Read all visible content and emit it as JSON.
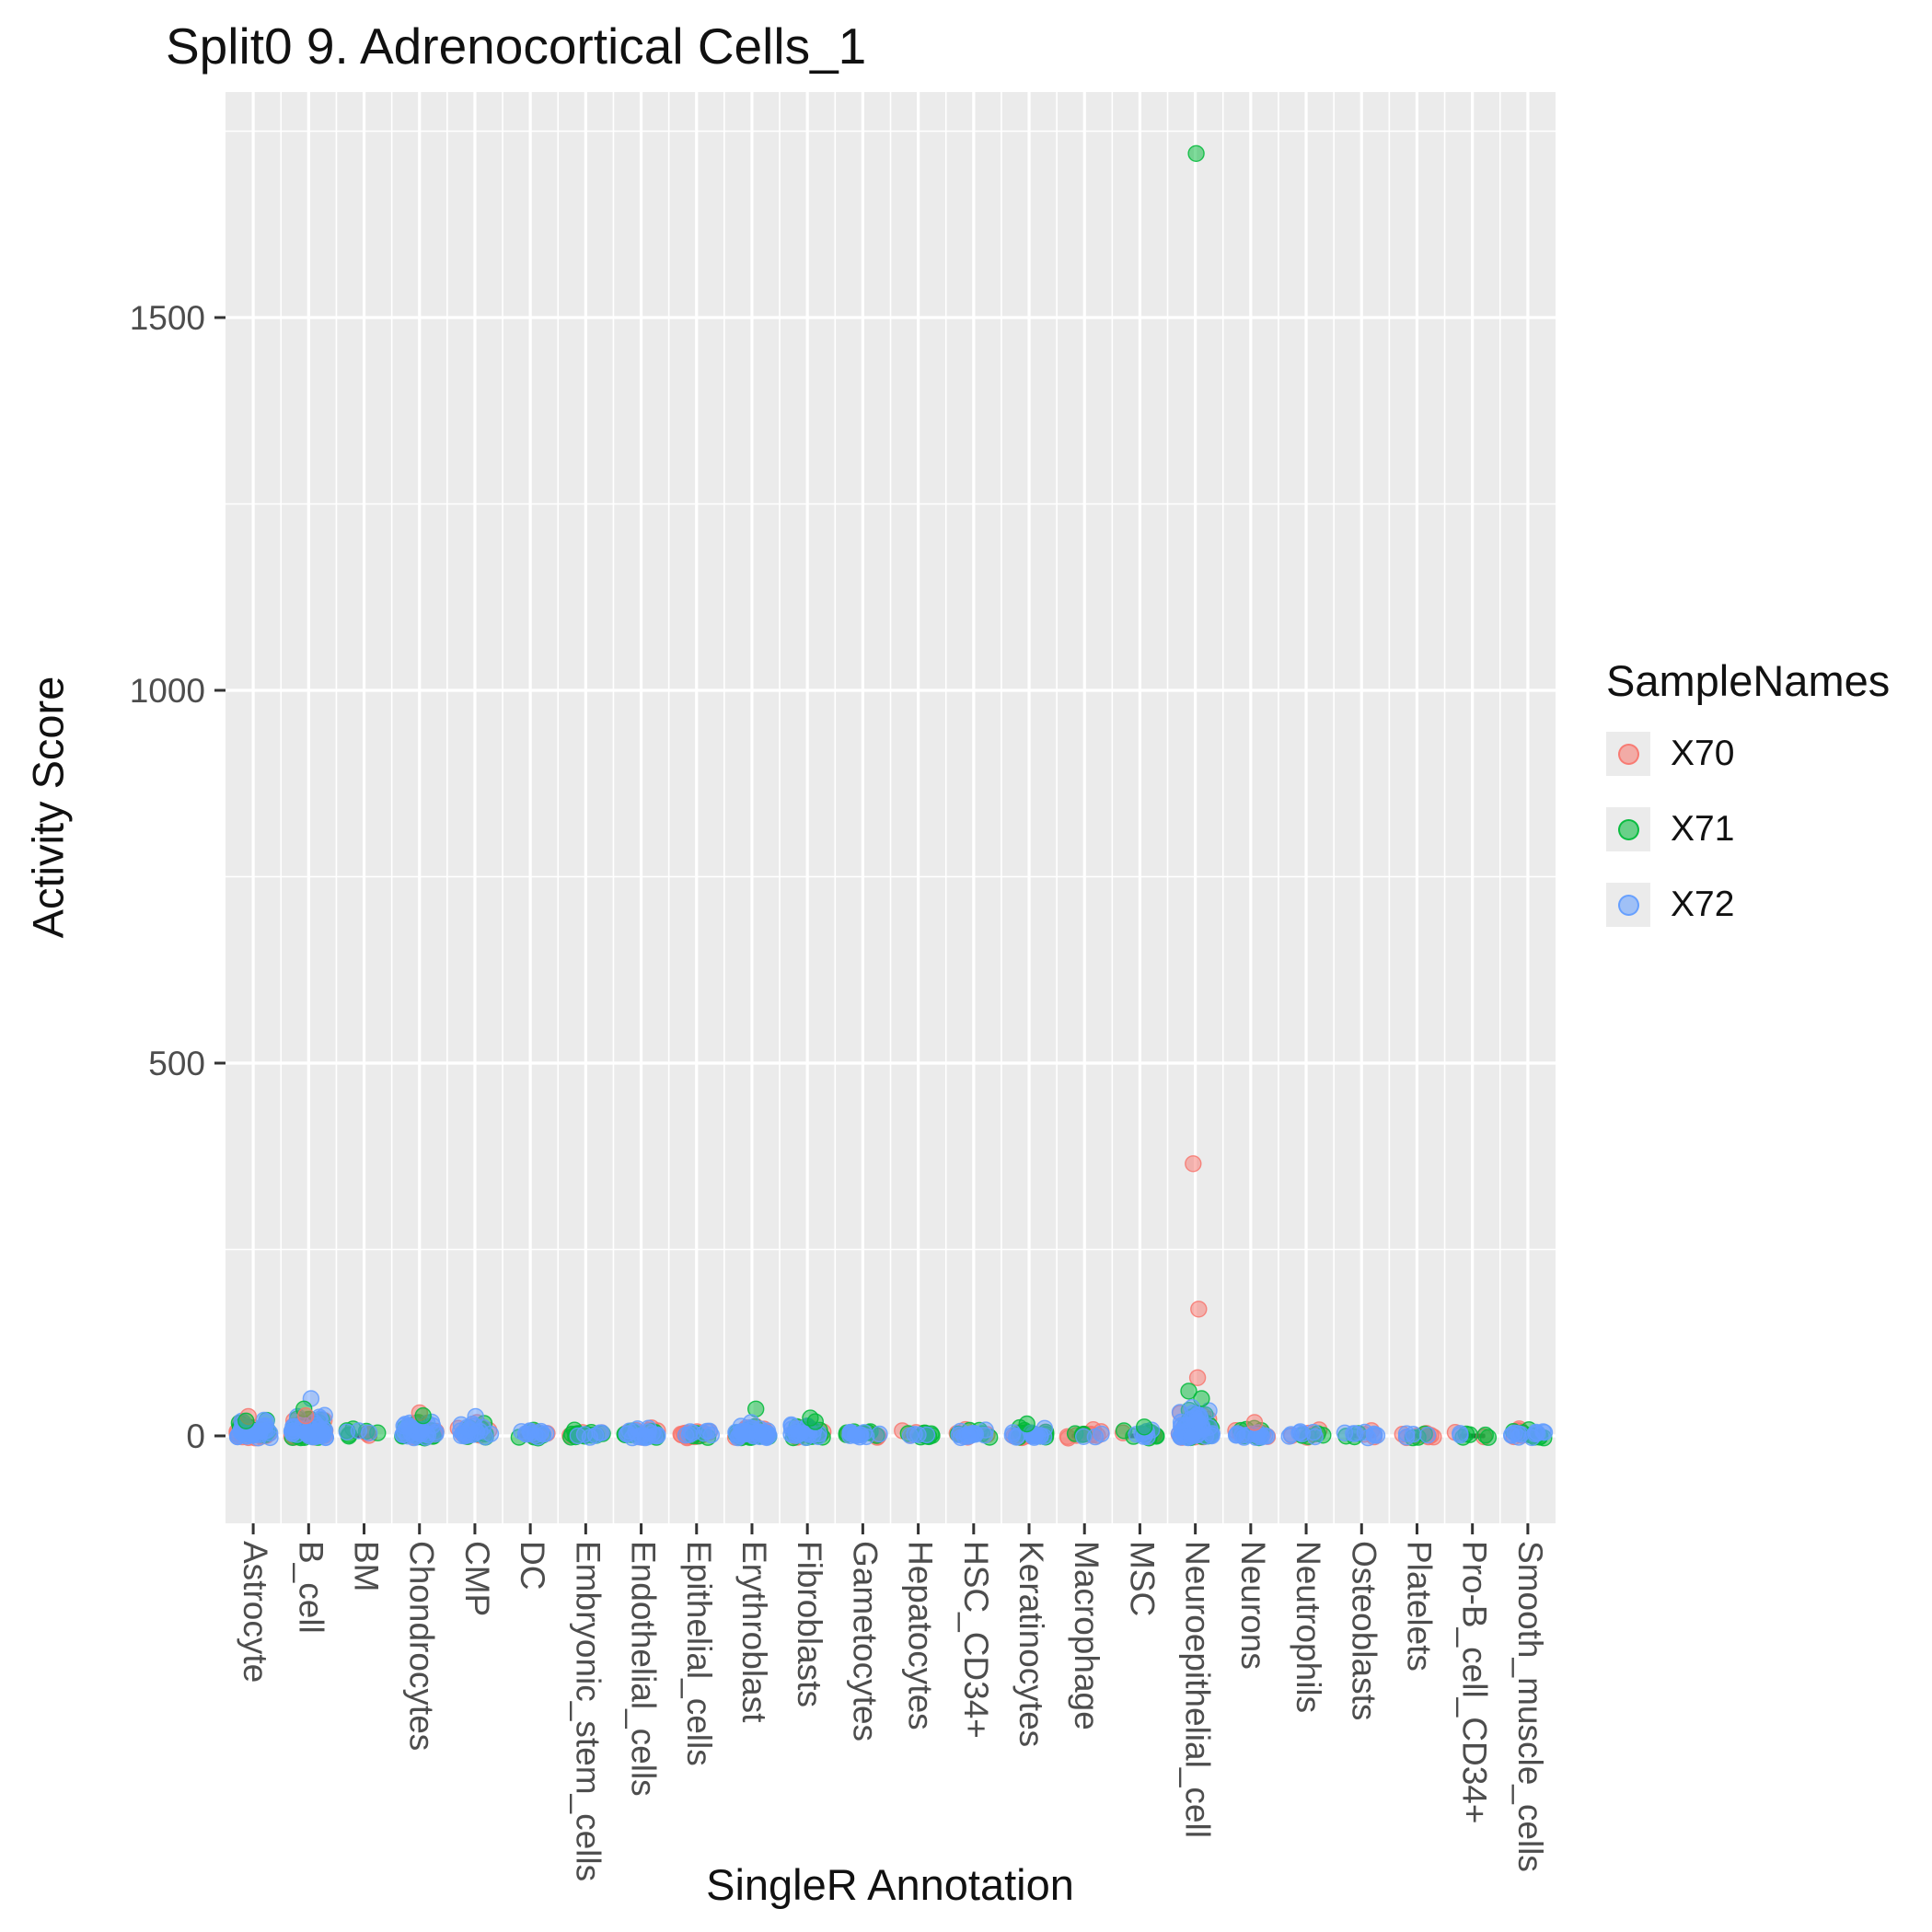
{
  "title": "Split0 9. Adrenocortical Cells_1",
  "legend": {
    "title": "SampleNames",
    "entries": [
      {
        "label": "X70",
        "color": "#F8766D"
      },
      {
        "label": "X71",
        "color": "#00BA38"
      },
      {
        "label": "X72",
        "color": "#619CFF"
      }
    ]
  },
  "chart_data": {
    "type": "scatter",
    "title": "Split0 9. Adrenocortical Cells_1",
    "xlabel": "SingleR Annotation",
    "ylabel": "Activity Score",
    "ylim": [
      -117,
      1802
    ],
    "yticks": [
      0,
      500,
      1000,
      1500
    ],
    "y_minor": [
      250,
      750,
      1250,
      1750
    ],
    "grid": "white-on-grey",
    "legend_position": "right",
    "panel_color": "#EBEBEB",
    "samples": [
      "X70",
      "X71",
      "X72"
    ],
    "colors": {
      "X70": "#F8766D",
      "X71": "#00BA38",
      "X72": "#619CFF"
    },
    "categories": [
      "Astrocyte",
      "B_cell",
      "BM",
      "Chondrocytes",
      "CMP",
      "DC",
      "Embryonic_stem_cells",
      "Endothelial_cells",
      "Epithelial_cells",
      "Erythroblast",
      "Fibroblasts",
      "Gametocytes",
      "Hepatocytes",
      "HSC_CD34+",
      "Keratinocytes",
      "Macrophage",
      "MSC",
      "Neuroepithelial_cell",
      "Neurons",
      "Neutrophils",
      "Osteoblasts",
      "Platelets",
      "Pro-B_cell_CD34+",
      "Smooth_muscle_cells"
    ],
    "clusters": [
      {
        "category": "Astrocyte",
        "counts": {
          "X70": 22,
          "X71": 18,
          "X72": 40
        },
        "spread": 20
      },
      {
        "category": "B_cell",
        "counts": {
          "X70": 28,
          "X71": 30,
          "X72": 48
        },
        "spread": 26
      },
      {
        "category": "BM",
        "counts": {
          "X70": 3,
          "X71": 6,
          "X72": 3
        },
        "spread": 12
      },
      {
        "category": "Chondrocytes",
        "counts": {
          "X70": 18,
          "X71": 18,
          "X72": 30
        },
        "spread": 18
      },
      {
        "category": "CMP",
        "counts": {
          "X70": 8,
          "X71": 8,
          "X72": 20
        },
        "spread": 16
      },
      {
        "category": "DC",
        "counts": {
          "X70": 8,
          "X71": 5,
          "X72": 12
        },
        "spread": 7
      },
      {
        "category": "Embryonic_stem_cells",
        "counts": {
          "X70": 4,
          "X71": 16,
          "X72": 6
        },
        "spread": 6
      },
      {
        "category": "Endothelial_cells",
        "counts": {
          "X70": 8,
          "X71": 10,
          "X72": 18
        },
        "spread": 9
      },
      {
        "category": "Epithelial_cells",
        "counts": {
          "X70": 16,
          "X71": 4,
          "X72": 8
        },
        "spread": 7
      },
      {
        "category": "Erythroblast",
        "counts": {
          "X70": 12,
          "X71": 14,
          "X72": 34
        },
        "spread": 16
      },
      {
        "category": "Fibroblasts",
        "counts": {
          "X70": 10,
          "X71": 16,
          "X72": 20
        },
        "spread": 14
      },
      {
        "category": "Gametocytes",
        "counts": {
          "X70": 6,
          "X71": 8,
          "X72": 14
        },
        "spread": 7
      },
      {
        "category": "Hepatocytes",
        "counts": {
          "X70": 3,
          "X71": 10,
          "X72": 4
        },
        "spread": 6
      },
      {
        "category": "HSC_CD34+",
        "counts": {
          "X70": 5,
          "X71": 5,
          "X72": 14
        },
        "spread": 6
      },
      {
        "category": "Keratinocytes",
        "counts": {
          "X70": 12,
          "X71": 10,
          "X72": 16
        },
        "spread": 11
      },
      {
        "category": "Macrophage",
        "counts": {
          "X70": 10,
          "X71": 3,
          "X72": 3
        },
        "spread": 6
      },
      {
        "category": "MSC",
        "counts": {
          "X70": 4,
          "X71": 8,
          "X72": 7
        },
        "spread": 8
      },
      {
        "category": "Neuroepithelial_cell",
        "counts": {
          "X70": 20,
          "X71": 30,
          "X72": 45
        },
        "spread": 34
      },
      {
        "category": "Neurons",
        "counts": {
          "X70": 10,
          "X71": 7,
          "X72": 15
        },
        "spread": 9
      },
      {
        "category": "Neutrophils",
        "counts": {
          "X70": 5,
          "X71": 4,
          "X72": 7
        },
        "spread": 6
      },
      {
        "category": "Osteoblasts",
        "counts": {
          "X70": 3,
          "X71": 3,
          "X72": 8
        },
        "spread": 6
      },
      {
        "category": "Platelets",
        "counts": {
          "X70": 8,
          "X71": 3,
          "X72": 4
        },
        "spread": 6
      },
      {
        "category": "Pro-B_cell_CD34+",
        "counts": {
          "X70": 2,
          "X71": 5,
          "X72": 2
        },
        "spread": 4
      },
      {
        "category": "Smooth_muscle_cells",
        "counts": {
          "X70": 6,
          "X71": 9,
          "X72": 12
        },
        "spread": 8
      }
    ],
    "outliers": [
      {
        "category": "Astrocyte",
        "sample": "X70",
        "value": 26
      },
      {
        "category": "Astrocyte",
        "sample": "X71",
        "value": 20
      },
      {
        "category": "B_cell",
        "sample": "X72",
        "value": 50
      },
      {
        "category": "B_cell",
        "sample": "X71",
        "value": 36
      },
      {
        "category": "B_cell",
        "sample": "X70",
        "value": 27
      },
      {
        "category": "Chondrocytes",
        "sample": "X70",
        "value": 31
      },
      {
        "category": "Chondrocytes",
        "sample": "X71",
        "value": 27
      },
      {
        "category": "CMP",
        "sample": "X72",
        "value": 26
      },
      {
        "category": "Erythroblast",
        "sample": "X71",
        "value": 36
      },
      {
        "category": "Erythroblast",
        "sample": "X72",
        "value": 18
      },
      {
        "category": "Fibroblasts",
        "sample": "X71",
        "value": 24
      },
      {
        "category": "Fibroblasts",
        "sample": "X71",
        "value": 19
      },
      {
        "category": "Keratinocytes",
        "sample": "X71",
        "value": 16
      },
      {
        "category": "MSC",
        "sample": "X71",
        "value": 12
      },
      {
        "category": "Neuroepithelial_cell",
        "sample": "X71",
        "value": 1720
      },
      {
        "category": "Neuroepithelial_cell",
        "sample": "X70",
        "value": 365
      },
      {
        "category": "Neuroepithelial_cell",
        "sample": "X70",
        "value": 170
      },
      {
        "category": "Neuroepithelial_cell",
        "sample": "X70",
        "value": 78
      },
      {
        "category": "Neuroepithelial_cell",
        "sample": "X71",
        "value": 60
      },
      {
        "category": "Neuroepithelial_cell",
        "sample": "X71",
        "value": 50
      },
      {
        "category": "Neuroepithelial_cell",
        "sample": "X72",
        "value": 38
      },
      {
        "category": "Neurons",
        "sample": "X70",
        "value": 18
      }
    ]
  }
}
